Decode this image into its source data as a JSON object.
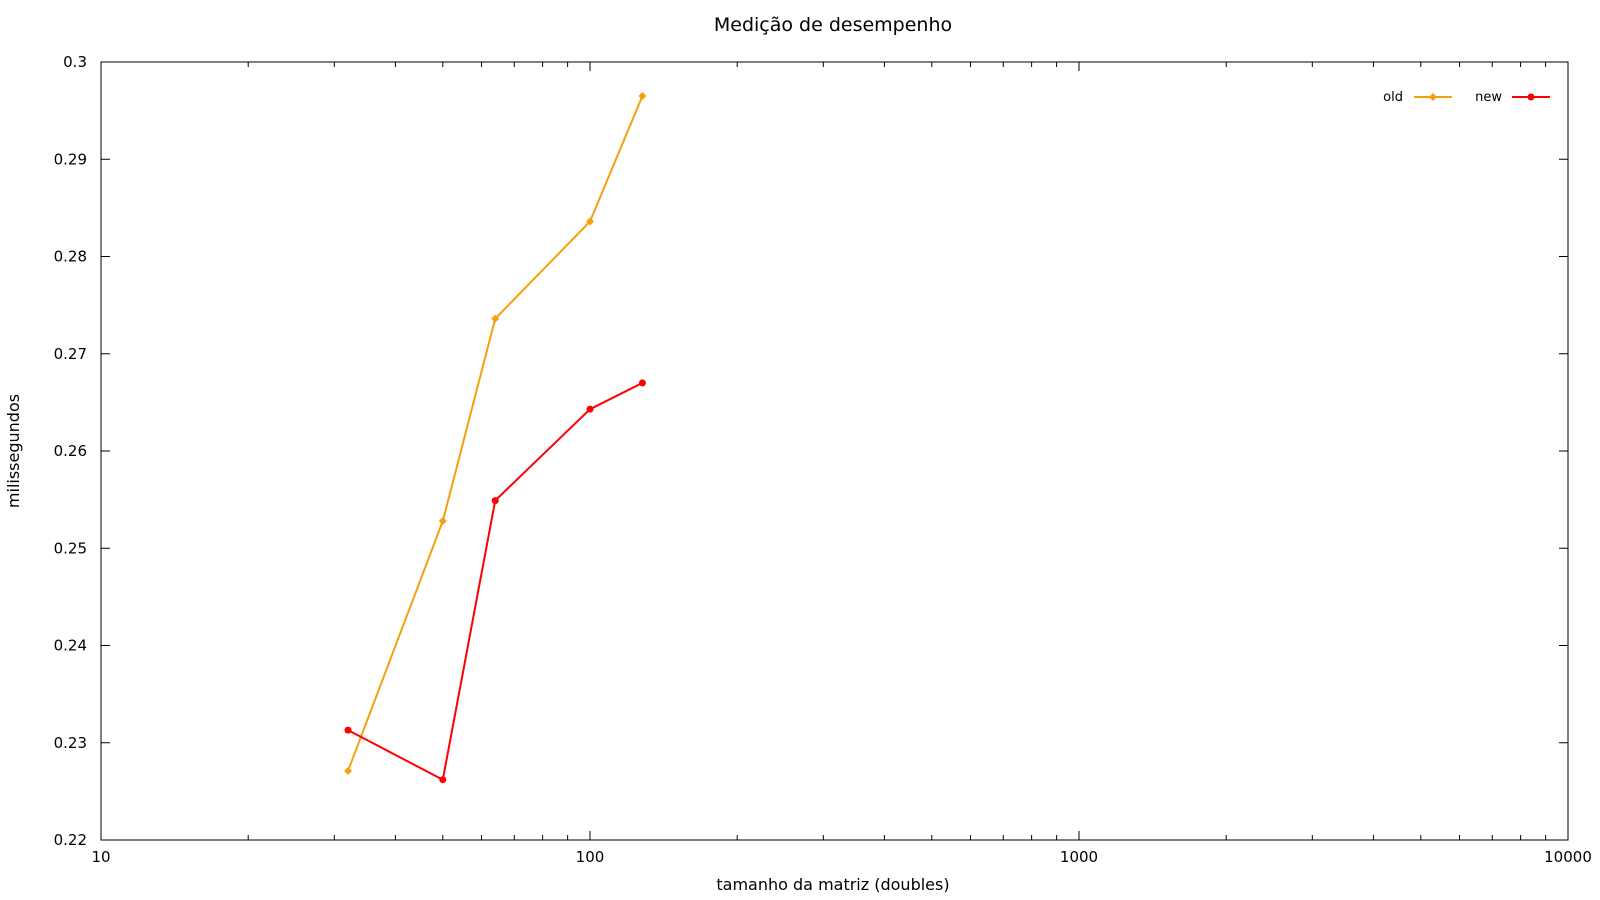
{
  "chart_data": {
    "type": "line",
    "title": "Medição de desempenho",
    "xlabel": "tamanho da matriz (doubles)",
    "ylabel": "milissegundos",
    "xscale": "log",
    "xlim": [
      10,
      10000
    ],
    "ylim": [
      0.22,
      0.3
    ],
    "xticks": [
      10,
      100,
      1000,
      10000
    ],
    "xtick_labels": [
      "10",
      "100",
      "1000",
      "10000"
    ],
    "yticks": [
      0.22,
      0.23,
      0.24,
      0.25,
      0.26,
      0.27,
      0.28,
      0.29,
      0.3
    ],
    "ytick_labels": [
      "0.22",
      "0.23",
      "0.24",
      "0.25",
      "0.26",
      "0.27",
      "0.28",
      "0.29",
      "0.3"
    ],
    "grid": false,
    "legend": "top-right",
    "series": [
      {
        "name": "old",
        "color": "#f5a00f",
        "marker": "diamond",
        "x": [
          32,
          50,
          64,
          100,
          128
        ],
        "y": [
          0.2271,
          0.2528,
          0.2736,
          0.2836,
          0.2965
        ]
      },
      {
        "name": "new",
        "color": "#ff0000",
        "marker": "circle",
        "x": [
          32,
          50,
          64,
          100,
          128
        ],
        "y": [
          0.2313,
          0.2262,
          0.2549,
          0.2643,
          0.267
        ]
      }
    ]
  }
}
